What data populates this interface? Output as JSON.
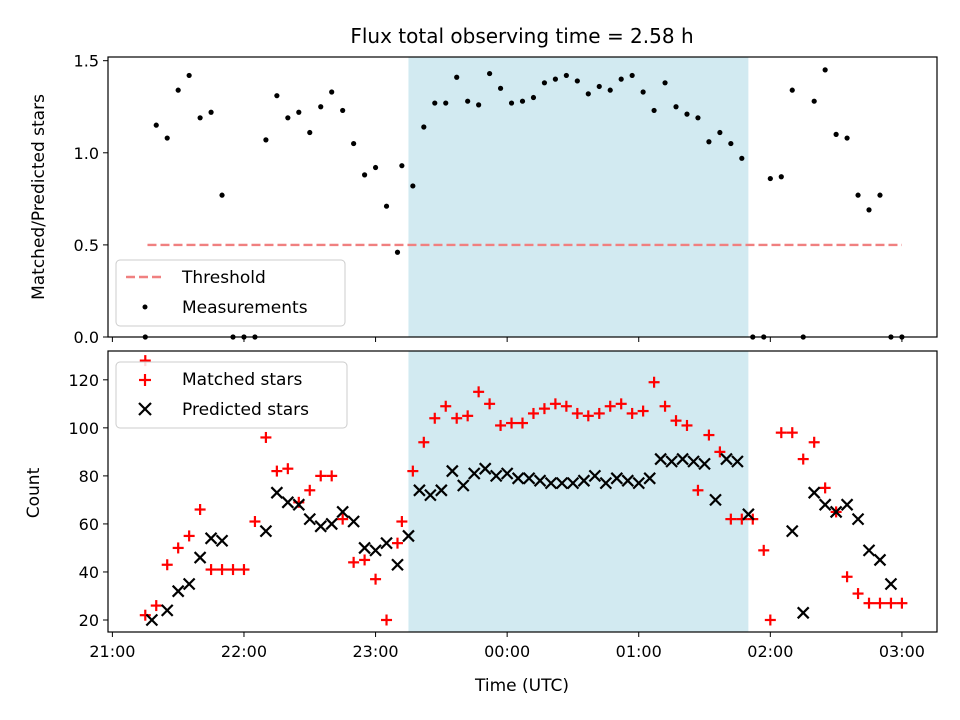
{
  "chart_data": [
    {
      "type": "scatter",
      "title": "Flux total observing time = 2.58 h",
      "ylabel": "Matched/Predicted stars",
      "xlim": [
        "20:58",
        "03:16"
      ],
      "ylim": [
        0,
        1.52
      ],
      "x_ticks": [
        "21:00",
        "22:00",
        "23:00",
        "00:00",
        "01:00",
        "02:00",
        "03:00"
      ],
      "y_ticks": [
        "0.0",
        "0.5",
        "1.0",
        "1.5"
      ],
      "shaded_interval": [
        "23:15",
        "01:50"
      ],
      "threshold": 0.5,
      "legend": {
        "position": "lower-left",
        "entries": [
          "Threshold",
          "Measurements"
        ]
      },
      "series": [
        {
          "name": "Threshold",
          "style": "dashed-line",
          "color": "#f08080",
          "x": [
            "21:16",
            "03:00"
          ],
          "values": [
            0.5,
            0.5
          ]
        },
        {
          "name": "Measurements",
          "style": "dot",
          "color": "#000000",
          "x": [
            "21:15",
            "21:20",
            "21:25",
            "21:30",
            "21:35",
            "21:40",
            "21:45",
            "21:50",
            "21:55",
            "22:00",
            "22:05",
            "22:10",
            "22:15",
            "22:20",
            "22:25",
            "22:30",
            "22:35",
            "22:40",
            "22:45",
            "22:50",
            "22:55",
            "23:00",
            "23:05",
            "23:10",
            "23:12",
            "23:17",
            "23:22",
            "23:27",
            "23:32",
            "23:37",
            "23:42",
            "23:47",
            "23:52",
            "23:57",
            "00:02",
            "00:07",
            "00:12",
            "00:17",
            "00:22",
            "00:27",
            "00:32",
            "00:37",
            "00:42",
            "00:47",
            "00:52",
            "00:57",
            "01:02",
            "01:07",
            "01:12",
            "01:17",
            "01:22",
            "01:27",
            "01:32",
            "01:37",
            "01:42",
            "01:47",
            "01:52",
            "01:57",
            "02:00",
            "02:05",
            "02:10",
            "02:15",
            "02:20",
            "02:25",
            "02:30",
            "02:35",
            "02:40",
            "02:45",
            "02:50",
            "02:55",
            "03:00"
          ],
          "values": [
            0.0,
            1.15,
            1.08,
            1.34,
            1.42,
            1.19,
            1.22,
            0.77,
            0.0,
            0.0,
            0.0,
            1.07,
            1.31,
            1.19,
            1.22,
            1.11,
            1.25,
            1.33,
            1.23,
            1.05,
            0.88,
            0.92,
            0.71,
            0.46,
            0.93,
            0.82,
            1.14,
            1.27,
            1.27,
            1.41,
            1.28,
            1.26,
            1.43,
            1.35,
            1.27,
            1.28,
            1.3,
            1.38,
            1.4,
            1.42,
            1.39,
            1.32,
            1.36,
            1.34,
            1.4,
            1.42,
            1.33,
            1.23,
            1.38,
            1.25,
            1.21,
            1.19,
            1.06,
            1.11,
            1.05,
            0.97,
            0.0,
            0.0,
            0.86,
            0.87,
            1.34,
            0.0,
            1.28,
            1.45,
            1.1,
            1.08,
            0.77,
            0.69,
            0.77,
            0.0,
            0.0
          ]
        }
      ]
    },
    {
      "type": "scatter",
      "xlabel": "Time (UTC)",
      "ylabel": "Count",
      "xlim": [
        "20:58",
        "03:16"
      ],
      "ylim": [
        15,
        132
      ],
      "x_ticks": [
        "21:00",
        "22:00",
        "23:00",
        "00:00",
        "01:00",
        "02:00",
        "03:00"
      ],
      "y_ticks": [
        "20",
        "40",
        "60",
        "80",
        "100",
        "120"
      ],
      "shaded_interval": [
        "23:15",
        "01:50"
      ],
      "legend": {
        "position": "upper-left",
        "entries": [
          "Matched stars",
          "Predicted stars"
        ]
      },
      "series": [
        {
          "name": "Matched stars",
          "marker": "plus",
          "color": "#ff0000",
          "x": [
            "21:15",
            "21:20",
            "21:25",
            "21:30",
            "21:35",
            "21:40",
            "21:45",
            "21:50",
            "21:55",
            "22:00",
            "22:05",
            "22:10",
            "22:15",
            "22:20",
            "22:25",
            "22:30",
            "22:35",
            "22:40",
            "22:45",
            "22:50",
            "22:55",
            "23:00",
            "23:05",
            "23:10",
            "23:12",
            "23:17",
            "23:22",
            "23:27",
            "23:32",
            "23:37",
            "23:42",
            "23:47",
            "23:52",
            "23:57",
            "00:02",
            "00:07",
            "00:12",
            "00:17",
            "00:22",
            "00:27",
            "00:32",
            "00:37",
            "00:42",
            "00:47",
            "00:52",
            "00:57",
            "01:02",
            "01:07",
            "01:12",
            "01:17",
            "01:22",
            "01:27",
            "01:32",
            "01:37",
            "01:42",
            "01:47",
            "01:52",
            "01:57",
            "02:00",
            "02:05",
            "02:10",
            "02:15",
            "02:20",
            "02:25",
            "02:30",
            "02:35",
            "02:40",
            "02:45",
            "02:50",
            "02:55",
            "03:00"
          ],
          "values": [
            22,
            26,
            43,
            50,
            55,
            66,
            41,
            41,
            41,
            41,
            61,
            96,
            82,
            83,
            69,
            74,
            80,
            80,
            62,
            44,
            45,
            37,
            20,
            52,
            61,
            82,
            94,
            104,
            109,
            104,
            105,
            115,
            110,
            101,
            102,
            102,
            106,
            108,
            110,
            109,
            106,
            105,
            106,
            109,
            110,
            106,
            107,
            119,
            109,
            103,
            101,
            74,
            97,
            90,
            62,
            62,
            62,
            49,
            20,
            98,
            98,
            87,
            94,
            75,
            65,
            38,
            31,
            27,
            27,
            27,
            27
          ],
          "extra_points": [
            {
              "x": "21:15",
              "y": 128
            }
          ]
        },
        {
          "name": "Predicted stars",
          "marker": "x",
          "color": "#000000",
          "x": [
            "21:18",
            "21:25",
            "21:30",
            "21:35",
            "21:40",
            "21:45",
            "21:50",
            "22:10",
            "22:15",
            "22:20",
            "22:25",
            "22:30",
            "22:35",
            "22:40",
            "22:45",
            "22:50",
            "22:55",
            "23:00",
            "23:05",
            "23:10",
            "23:15",
            "23:20",
            "23:25",
            "23:30",
            "23:35",
            "23:40",
            "23:45",
            "23:50",
            "23:55",
            "00:00",
            "00:05",
            "00:10",
            "00:15",
            "00:20",
            "00:25",
            "00:30",
            "00:35",
            "00:40",
            "00:45",
            "00:50",
            "00:55",
            "01:00",
            "01:05",
            "01:10",
            "01:15",
            "01:20",
            "01:25",
            "01:30",
            "01:35",
            "01:40",
            "01:45",
            "01:50",
            "02:10",
            "02:15",
            "02:20",
            "02:25",
            "02:30",
            "02:35",
            "02:40",
            "02:45",
            "02:50",
            "02:55"
          ],
          "values": [
            20,
            24,
            32,
            35,
            46,
            54,
            53,
            57,
            73,
            69,
            68,
            62,
            59,
            60,
            65,
            61,
            50,
            49,
            52,
            43,
            55,
            74,
            72,
            74,
            82,
            76,
            81,
            83,
            80,
            81,
            79,
            79,
            78,
            77,
            77,
            77,
            78,
            80,
            77,
            79,
            78,
            77,
            79,
            87,
            86,
            87,
            86,
            85,
            70,
            87,
            86,
            64,
            57,
            23,
            73,
            68,
            65,
            68,
            62,
            49,
            45,
            35
          ]
        }
      ]
    }
  ]
}
